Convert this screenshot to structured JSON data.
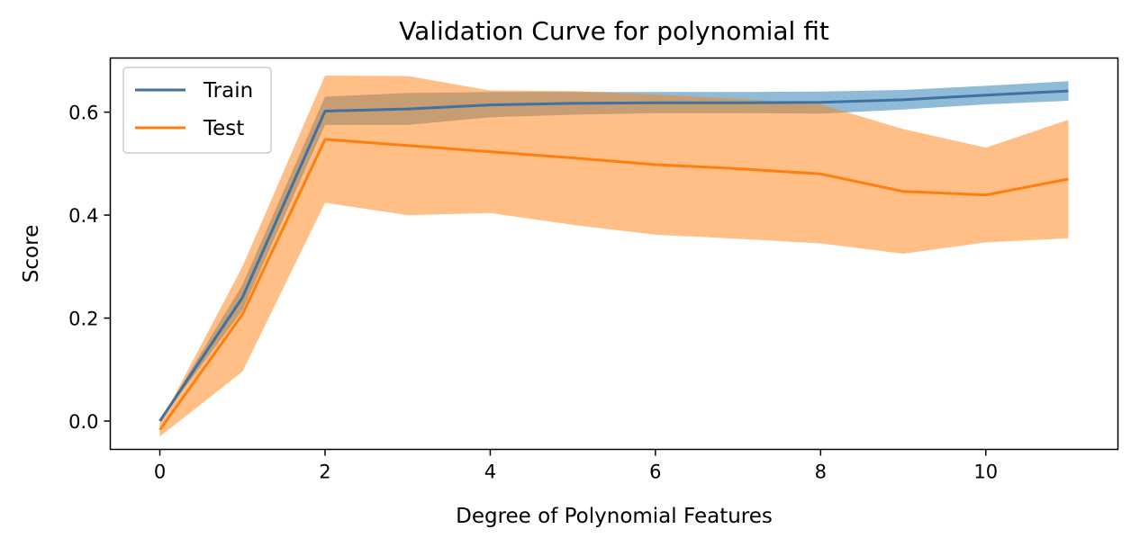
{
  "chart_data": {
    "type": "line",
    "title": "Validation Curve for polynomial fit",
    "xlabel": "Degree of Polynomial Features",
    "ylabel": "Score",
    "xlim": [
      -0.6,
      11.6
    ],
    "ylim": [
      -0.055,
      0.705
    ],
    "xticks": [
      0,
      2,
      4,
      6,
      8,
      10
    ],
    "xtick_labels": [
      "0",
      "2",
      "4",
      "6",
      "8",
      "10"
    ],
    "yticks": [
      0.0,
      0.2,
      0.4,
      0.6
    ],
    "ytick_labels": [
      "0.0",
      "0.2",
      "0.4",
      "0.6"
    ],
    "grid": false,
    "legend_position": "top-left",
    "x": [
      0,
      1,
      2,
      3,
      4,
      5,
      6,
      7,
      8,
      9,
      10,
      11
    ],
    "series": [
      {
        "name": "Train",
        "color": "#3f71a1",
        "band_color": "#1f77b4",
        "values": [
          0.0,
          0.24,
          0.602,
          0.606,
          0.614,
          0.617,
          0.618,
          0.618,
          0.619,
          0.624,
          0.633,
          0.641
        ],
        "lower": [
          0.0,
          0.215,
          0.575,
          0.575,
          0.59,
          0.595,
          0.598,
          0.598,
          0.597,
          0.605,
          0.615,
          0.622
        ],
        "upper": [
          0.0,
          0.265,
          0.63,
          0.637,
          0.639,
          0.639,
          0.639,
          0.639,
          0.64,
          0.643,
          0.651,
          0.66
        ]
      },
      {
        "name": "Test",
        "color": "#ff7f0e",
        "band_color": "#ff7f0e",
        "values": [
          -0.017,
          0.207,
          0.547,
          0.535,
          0.523,
          0.511,
          0.498,
          0.49,
          0.48,
          0.446,
          0.439,
          0.47
        ],
        "lower": [
          -0.03,
          0.096,
          0.424,
          0.4,
          0.404,
          0.381,
          0.362,
          0.354,
          0.345,
          0.325,
          0.347,
          0.355
        ],
        "upper": [
          -0.004,
          0.3,
          0.671,
          0.67,
          0.642,
          0.641,
          0.634,
          0.626,
          0.615,
          0.567,
          0.531,
          0.585
        ]
      }
    ]
  }
}
